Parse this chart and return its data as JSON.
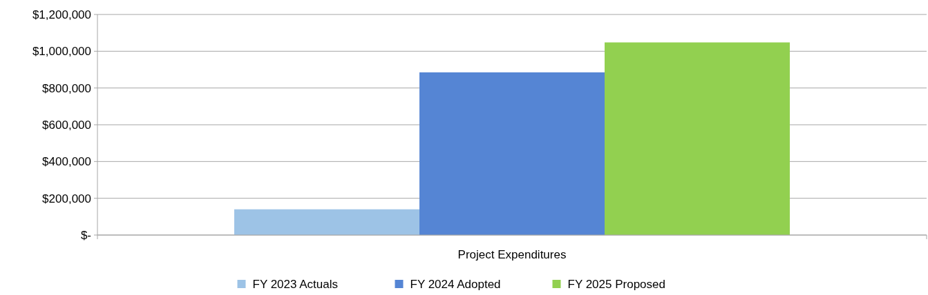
{
  "chart_data": {
    "type": "bar",
    "categories": [
      "Project Expenditures"
    ],
    "series": [
      {
        "name": "FY 2023 Actuals",
        "color": "#9dc3e6",
        "values": [
          140000
        ]
      },
      {
        "name": "FY 2024 Adopted",
        "color": "#5585d4",
        "values": [
          885000
        ]
      },
      {
        "name": "FY 2025 Proposed",
        "color": "#92d050",
        "values": [
          1048000
        ]
      }
    ],
    "ylim": [
      0,
      1200000
    ],
    "yticks": [
      {
        "value": 0,
        "label": "$-"
      },
      {
        "value": 200000,
        "label": "$200,000"
      },
      {
        "value": 400000,
        "label": "$400,000"
      },
      {
        "value": 600000,
        "label": "$600,000"
      },
      {
        "value": 800000,
        "label": "$800,000"
      },
      {
        "value": 1000000,
        "label": "$1,000,000"
      },
      {
        "value": 1200000,
        "label": "$1,200,000"
      }
    ],
    "grid": "y",
    "legend": "bottom"
  }
}
